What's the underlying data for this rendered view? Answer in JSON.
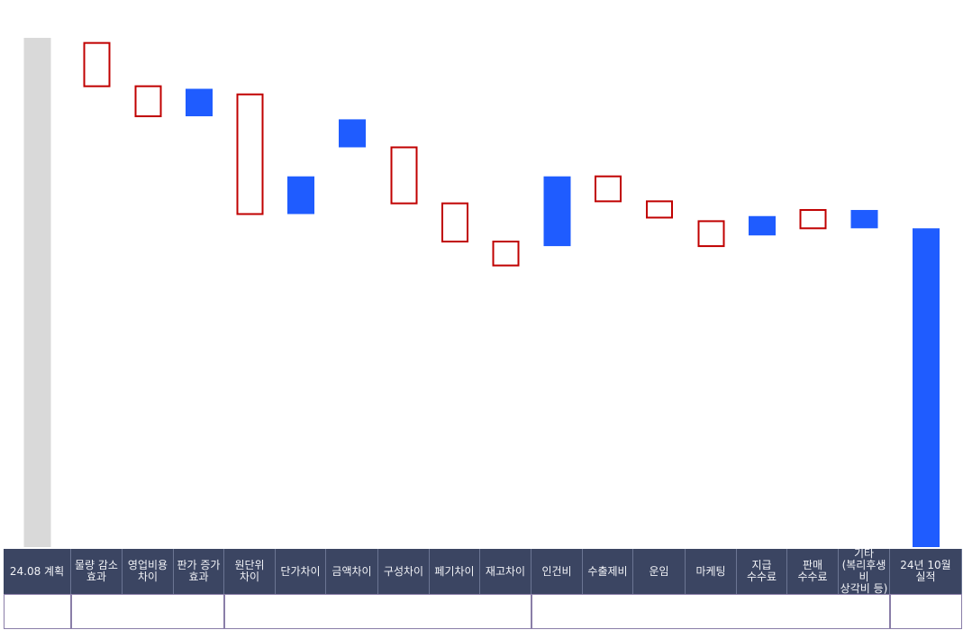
{
  "chart_data": {
    "type": "waterfall",
    "title": "",
    "xlabel": "",
    "ylabel": "",
    "value_labels_shown": false,
    "ylim": [
      0,
      100
    ],
    "colors": {
      "total_gray": "#d9d9d9",
      "total_blue": "#1f5cff",
      "increase_fill": "#1f5cff",
      "decrease_outline": "#c00000"
    },
    "categories": [
      "24.08 계획",
      "물량 감소\n효과",
      "영업비용\n차이",
      "판가 증가\n효과",
      "원단위\n차이",
      "단가차이",
      "금액차이",
      "구성차이",
      "페기차이",
      "재고차이",
      "인건비",
      "수출제비",
      "운임",
      "마케팅",
      "지급\n수수료",
      "판매\n수수료",
      "기타\n(복리후생비\n상각비 등)",
      "24년 10월\n실적"
    ],
    "bars": [
      {
        "kind": "total",
        "color": "gray",
        "value": 100.0
      },
      {
        "kind": "decrease",
        "start": 99.0,
        "end": 90.5
      },
      {
        "kind": "decrease",
        "start": 90.5,
        "end": 84.6
      },
      {
        "kind": "increase",
        "start": 84.6,
        "end": 90.0
      },
      {
        "kind": "decrease",
        "start": 88.9,
        "end": 65.4
      },
      {
        "kind": "increase",
        "start": 65.4,
        "end": 72.8
      },
      {
        "kind": "increase",
        "start": 78.5,
        "end": 84.0
      },
      {
        "kind": "decrease",
        "start": 78.5,
        "end": 67.5
      },
      {
        "kind": "decrease",
        "start": 67.5,
        "end": 60.0
      },
      {
        "kind": "decrease",
        "start": 60.0,
        "end": 55.3
      },
      {
        "kind": "increase",
        "start": 59.1,
        "end": 72.8
      },
      {
        "kind": "decrease",
        "start": 72.8,
        "end": 67.9
      },
      {
        "kind": "decrease",
        "start": 67.9,
        "end": 64.7
      },
      {
        "kind": "decrease",
        "start": 64.0,
        "end": 59.1
      },
      {
        "kind": "increase",
        "start": 61.2,
        "end": 65.0
      },
      {
        "kind": "decrease",
        "start": 66.2,
        "end": 62.6
      },
      {
        "kind": "increase",
        "start": 62.6,
        "end": 66.2
      },
      {
        "kind": "total",
        "color": "blue",
        "value": 62.6
      }
    ],
    "group_spans": [
      1,
      3,
      6,
      7,
      1
    ]
  }
}
